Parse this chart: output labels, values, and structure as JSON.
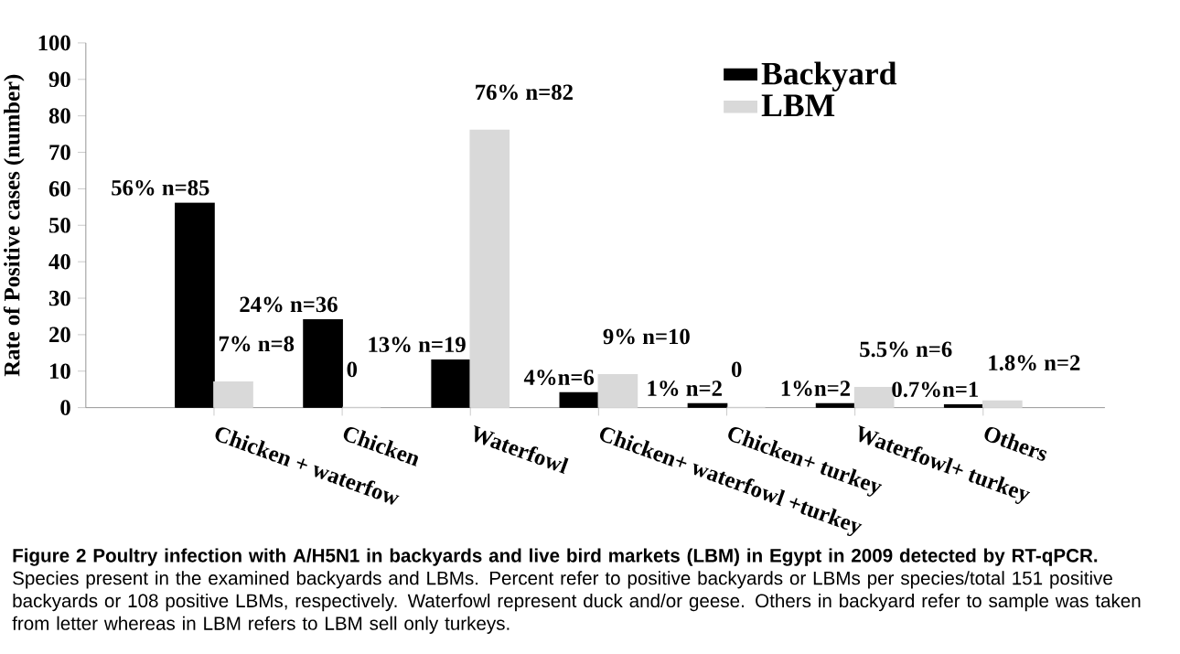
{
  "chart_data": {
    "type": "bar",
    "ylabel": "Rate of Positive cases (number)",
    "categories": [
      "Chicken + waterfow",
      "Chicken",
      "Waterfowl",
      "Chicken+ waterfowl +turkey",
      "Chicken+ turkey",
      "Waterfowl+ turkey",
      "Others"
    ],
    "series": [
      {
        "name": "Backyard",
        "color": "#000000",
        "values": [
          56,
          24,
          13,
          4,
          1,
          1,
          0.7
        ],
        "value_labels": [
          "56% n=85",
          "24% n=36",
          "13% n=19",
          "4%n=6",
          "1% n=2",
          "1%n=2",
          "0.7%n=1"
        ]
      },
      {
        "name": "LBM",
        "color": "#d9d9d9",
        "values": [
          7,
          0,
          76,
          9,
          0,
          5.5,
          1.8
        ],
        "value_labels": [
          "7% n=8",
          "0",
          "76% n=82",
          "9% n=10",
          "0",
          "5.5% n=6",
          "1.8% n=2"
        ]
      }
    ],
    "ylim": [
      0,
      100
    ],
    "yticks": [
      0,
      10,
      20,
      30,
      40,
      50,
      60,
      70,
      80,
      90,
      100
    ],
    "legend": "top right",
    "annotations": [
      "**Figure 2 Poultry infection with A/H5N1 in backyards and live bird markets (LBM) in Egypt in 2009 detected by RT-qPCR.** Species present in the examined backyards and LBMs. Percent refer to positive backyards or LBMs per species/total 151 positive backyards or 108 positive LBMs, respectively. Waterfowl represent duck and/or geese. Others in backyard refer to sample was taken from letter whereas in LBM refers to LBM sell only turkeys."
    ]
  }
}
